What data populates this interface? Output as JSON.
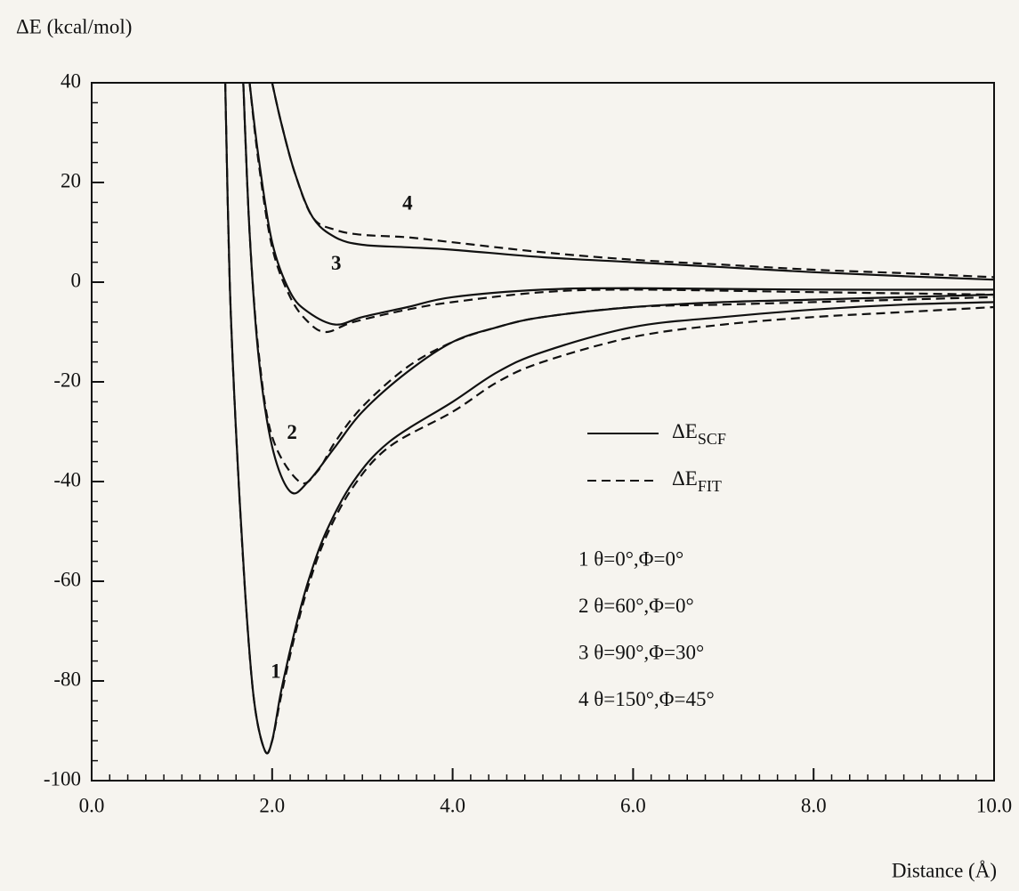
{
  "chart_data": {
    "type": "line",
    "y_label": "ΔE (kcal/mol)",
    "x_label": "Distance (Å)",
    "xlim": [
      0,
      10
    ],
    "ylim": [
      -100,
      40
    ],
    "xticks": [
      {
        "value": 0,
        "label": "0.0"
      },
      {
        "value": 2,
        "label": "2.0"
      },
      {
        "value": 4,
        "label": "4.0"
      },
      {
        "value": 6,
        "label": "6.0"
      },
      {
        "value": 8,
        "label": "8.0"
      },
      {
        "value": 10,
        "label": "10.0"
      }
    ],
    "yticks": [
      -100,
      -80,
      -60,
      -40,
      -20,
      0,
      20,
      40
    ],
    "xminor_step": 0.2,
    "yminor_step": 4,
    "color": "#111111",
    "series": [
      {
        "dash": false,
        "x": [
          1.48,
          1.53,
          1.6,
          1.7,
          1.8,
          1.92,
          2.0,
          2.1,
          2.25,
          2.4,
          2.6,
          2.9,
          3.3,
          4.0,
          4.5,
          5.0,
          6.0,
          7.0,
          8.0,
          9.0,
          10.0
        ],
        "values": [
          40,
          0,
          -30,
          -62,
          -84,
          -94,
          -92,
          -82,
          -70,
          -60,
          -50,
          -40,
          -32,
          -24,
          -18,
          -14,
          -9,
          -7,
          -5.5,
          -4.5,
          -4
        ]
      },
      {
        "dash": true,
        "x": [
          1.48,
          1.53,
          1.6,
          1.7,
          1.8,
          1.92,
          2.0,
          2.1,
          2.25,
          2.4,
          2.6,
          2.9,
          3.3,
          4.0,
          4.5,
          5.0,
          6.0,
          7.0,
          8.0,
          9.0,
          10.0
        ],
        "values": [
          40,
          0,
          -30,
          -62,
          -84,
          -94,
          -92,
          -83,
          -71,
          -61,
          -51,
          -41,
          -33,
          -26,
          -20,
          -16,
          -11,
          -8.5,
          -7,
          -6,
          -5
        ]
      },
      {
        "dash": false,
        "x": [
          1.68,
          1.75,
          1.85,
          2.0,
          2.2,
          2.4,
          2.7,
          3.0,
          3.5,
          4.0,
          4.5,
          5.0,
          6.0,
          7.0,
          8.0,
          10.0
        ],
        "values": [
          40,
          10,
          -15,
          -33,
          -42,
          -40,
          -33,
          -26,
          -18,
          -12,
          -9,
          -7,
          -5,
          -4,
          -3.5,
          -2.5
        ]
      },
      {
        "dash": true,
        "x": [
          1.68,
          1.75,
          1.85,
          2.0,
          2.3,
          2.5,
          2.7,
          3.0,
          3.5,
          4.0,
          4.5,
          5.0,
          6.0,
          7.0,
          8.0,
          10.0
        ],
        "values": [
          40,
          10,
          -14,
          -31,
          -40,
          -38,
          -32,
          -25,
          -17,
          -12,
          -9,
          -7,
          -5,
          -4.5,
          -4,
          -3
        ]
      },
      {
        "dash": false,
        "x": [
          1.75,
          1.85,
          2.0,
          2.2,
          2.4,
          2.7,
          3.0,
          3.5,
          4.0,
          5.0,
          6.0,
          8.0,
          10.0
        ],
        "values": [
          40,
          25,
          8,
          -2,
          -6,
          -8.5,
          -7,
          -5,
          -3,
          -1.5,
          -1.2,
          -1.5,
          -1.5
        ]
      },
      {
        "dash": true,
        "x": [
          1.75,
          1.85,
          2.0,
          2.2,
          2.4,
          2.6,
          2.9,
          3.5,
          4.0,
          5.0,
          6.0,
          8.0,
          10.0
        ],
        "values": [
          40,
          24,
          7,
          -3,
          -8,
          -10,
          -8,
          -5.5,
          -4,
          -2,
          -1.5,
          -2,
          -2.5
        ]
      },
      {
        "dash": false,
        "x": [
          2.0,
          2.1,
          2.25,
          2.45,
          2.7,
          3.0,
          3.5,
          4.0,
          5.0,
          6.0,
          7.0,
          8.0,
          9.0,
          10.0
        ],
        "values": [
          40,
          32,
          22,
          13,
          9,
          7.5,
          7,
          6.5,
          5,
          4,
          3,
          2,
          1.2,
          0.5
        ]
      },
      {
        "dash": true,
        "x": [
          2.0,
          2.1,
          2.25,
          2.45,
          2.7,
          3.0,
          3.5,
          4.0,
          5.0,
          6.0,
          7.0,
          8.0,
          9.0,
          10.0
        ],
        "values": [
          40,
          32,
          22,
          13,
          10.5,
          9.5,
          9,
          8,
          6,
          4.5,
          3.5,
          2.5,
          1.8,
          1
        ]
      }
    ],
    "annotations": [
      {
        "text": "1",
        "x": 2.04,
        "y": -78.4
      },
      {
        "text": "2",
        "x": 2.22,
        "y": -30.5
      },
      {
        "text": "3",
        "x": 2.71,
        "y": 3.4
      },
      {
        "text": "4",
        "x": 3.5,
        "y": 15.5
      }
    ],
    "legend": [
      {
        "main": "ΔE",
        "sub": "SCF",
        "dash": false
      },
      {
        "main": "ΔE",
        "sub": "FIT",
        "dash": true
      }
    ],
    "conditions": [
      "1 θ=0°,Φ=0°",
      "2 θ=60°,Φ=0°",
      "3 θ=90°,Φ=30°",
      "4 θ=150°,Φ=45°"
    ]
  }
}
